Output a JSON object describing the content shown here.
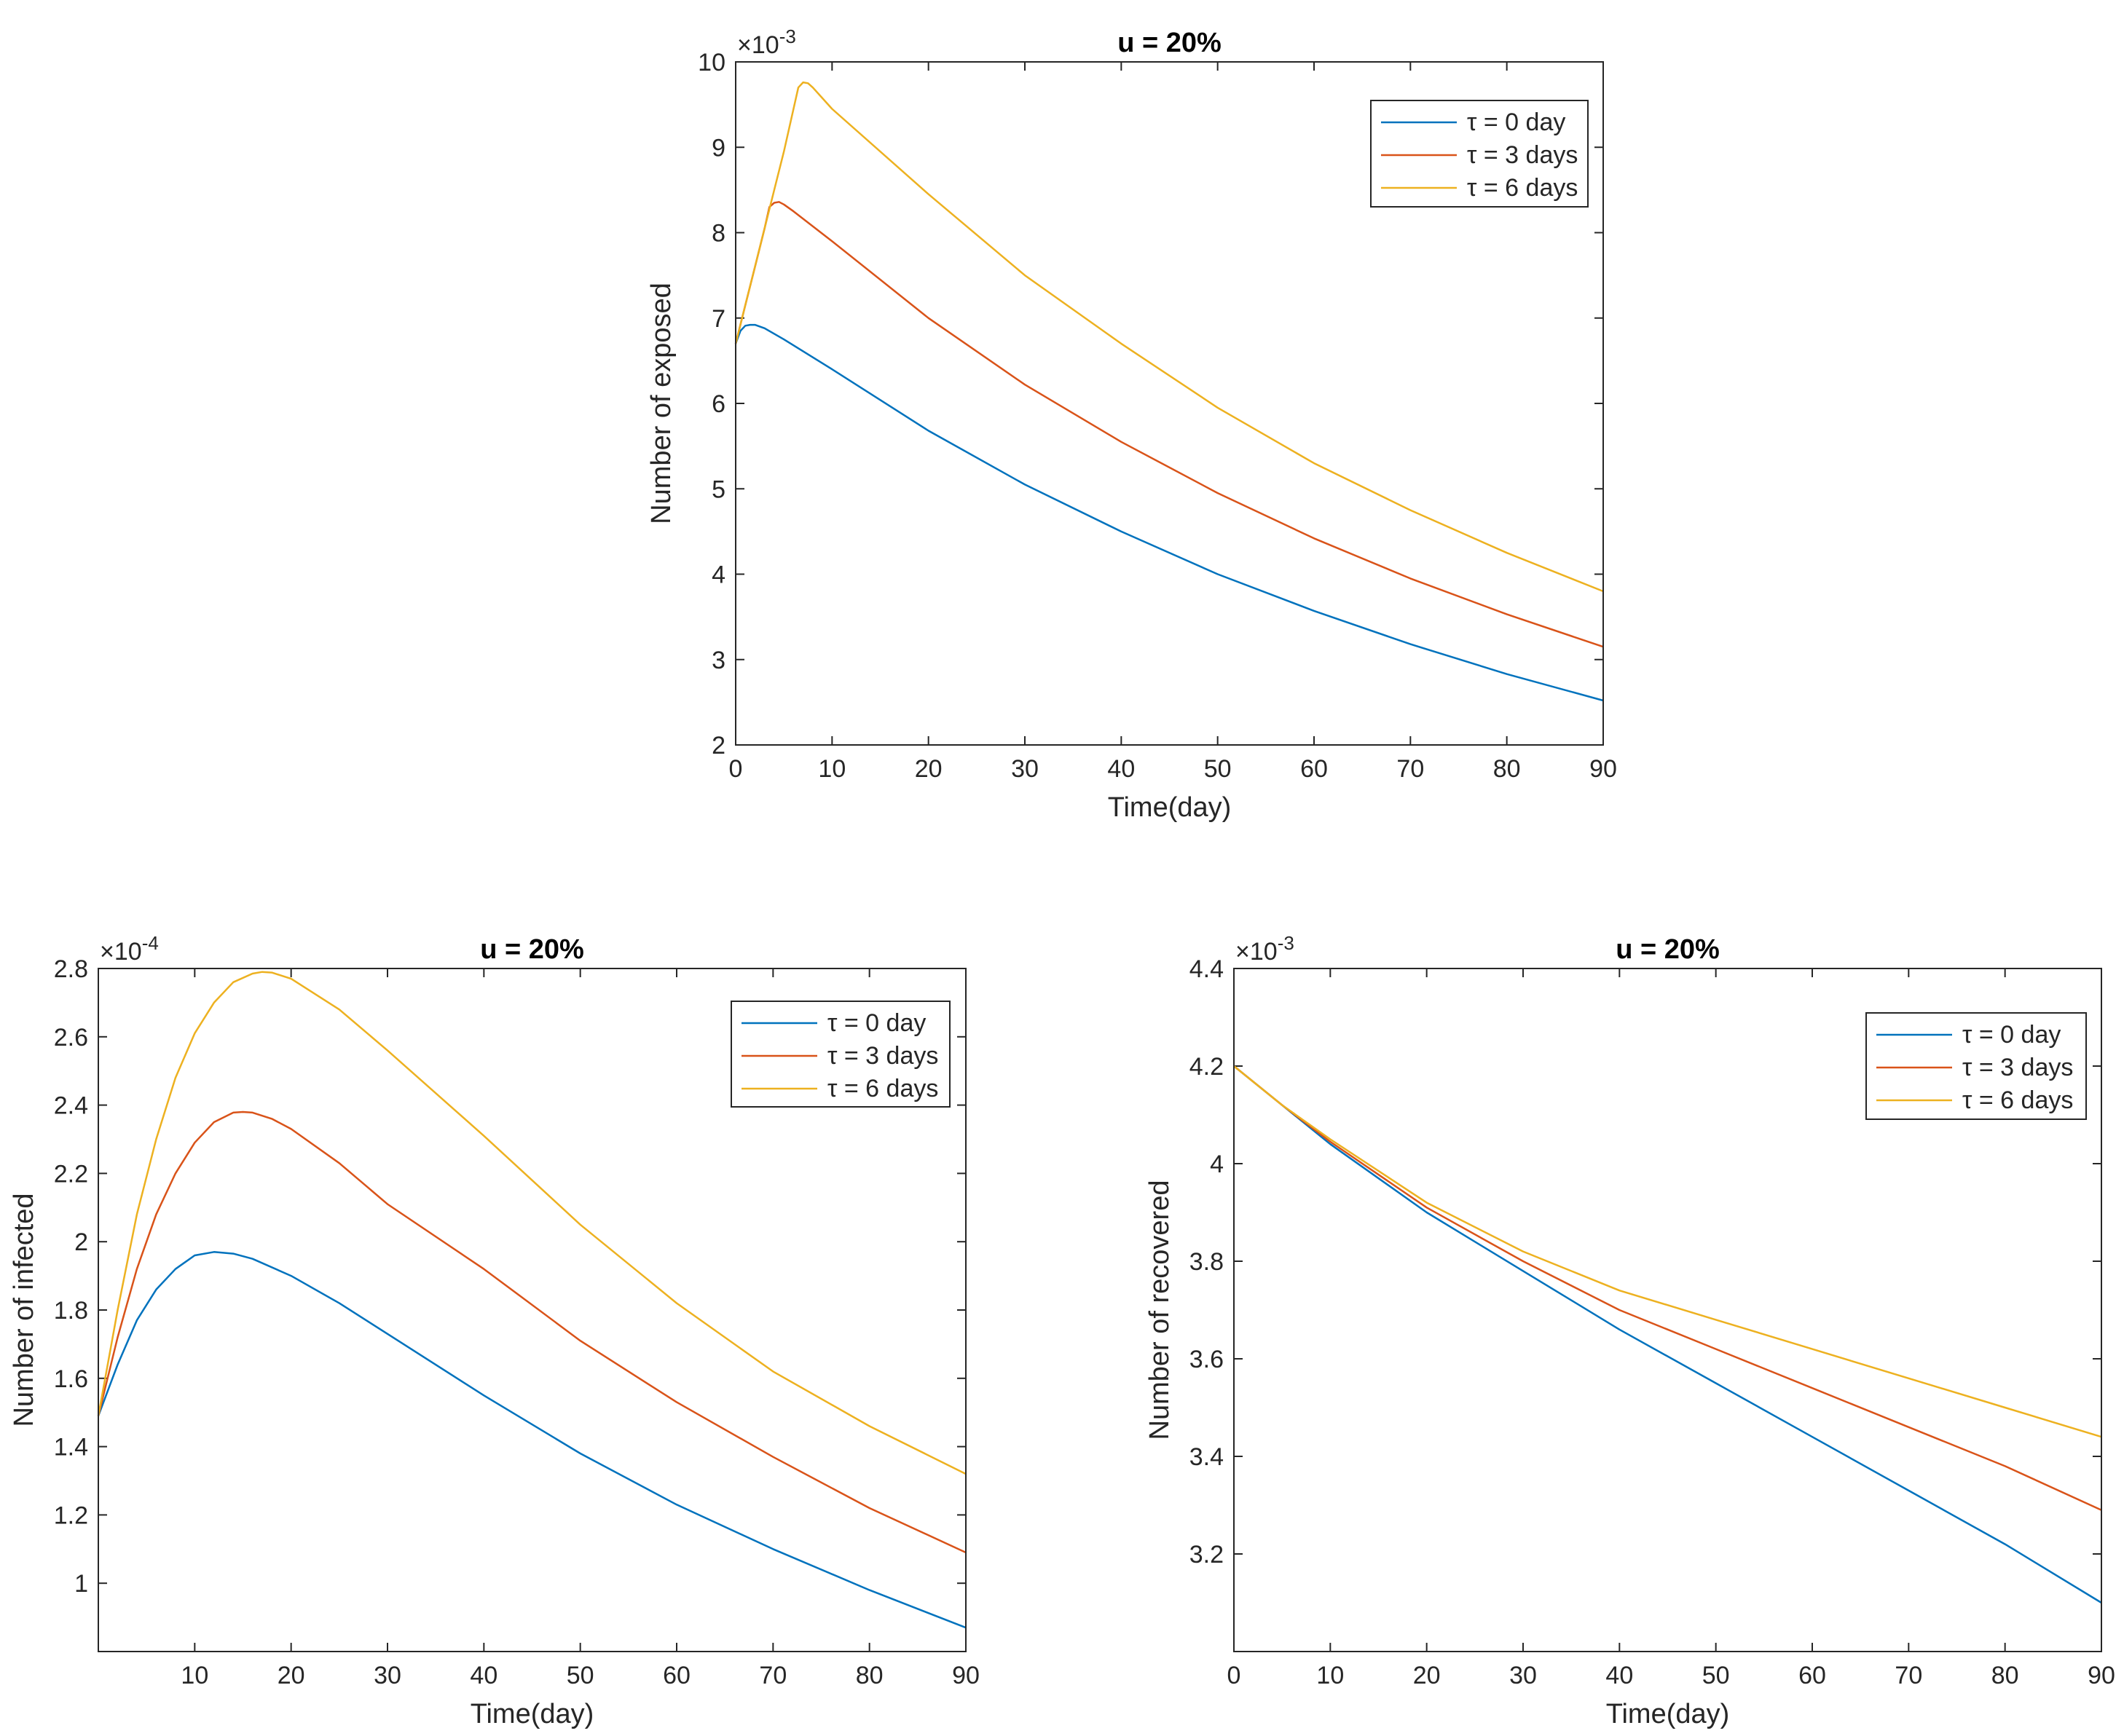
{
  "figure": {
    "colors": {
      "axis": "#262626",
      "tau0": "#0072BD",
      "tau3": "#D95319",
      "tau6": "#EDB120"
    }
  },
  "chart_data": [
    {
      "id": "exposed",
      "type": "line",
      "title": "u = 20%",
      "xlabel": "Time(day)",
      "ylabel": "Number of exposed",
      "exponent_label": "×10",
      "exponent_power": "-3",
      "xlim": [
        0,
        90
      ],
      "ylim": [
        2,
        10
      ],
      "xticks": [
        0,
        10,
        20,
        30,
        40,
        50,
        60,
        70,
        80,
        90
      ],
      "yticks": [
        2,
        3,
        4,
        5,
        6,
        7,
        8,
        9,
        10
      ],
      "legend_position": "top-right",
      "series": [
        {
          "name": "τ = 0 day",
          "color": "#0072BD",
          "x": [
            0,
            0.5,
            1,
            1.5,
            2,
            3,
            5,
            10,
            20,
            30,
            40,
            50,
            60,
            70,
            80,
            90
          ],
          "y": [
            6.7,
            6.85,
            6.91,
            6.92,
            6.92,
            6.88,
            6.75,
            6.4,
            5.68,
            5.05,
            4.5,
            4.0,
            3.57,
            3.18,
            2.83,
            2.52
          ]
        },
        {
          "name": "τ = 3 days",
          "color": "#D95319",
          "x": [
            0,
            1,
            2,
            3,
            3.5,
            4,
            4.5,
            5,
            6,
            10,
            20,
            30,
            40,
            50,
            60,
            70,
            80,
            90
          ],
          "y": [
            6.7,
            7.15,
            7.6,
            8.05,
            8.3,
            8.35,
            8.36,
            8.33,
            8.25,
            7.9,
            7.0,
            6.22,
            5.55,
            4.95,
            4.42,
            3.95,
            3.53,
            3.15
          ]
        },
        {
          "name": "τ = 6 days",
          "color": "#EDB120",
          "x": [
            0,
            1,
            2,
            3,
            4,
            5,
            6,
            6.5,
            7,
            7.5,
            8,
            10,
            20,
            30,
            40,
            50,
            60,
            70,
            80,
            90
          ],
          "y": [
            6.7,
            7.15,
            7.6,
            8.05,
            8.5,
            8.95,
            9.45,
            9.7,
            9.76,
            9.75,
            9.7,
            9.45,
            8.45,
            7.5,
            6.7,
            5.95,
            5.3,
            4.75,
            4.25,
            3.8
          ]
        }
      ]
    },
    {
      "id": "infected",
      "type": "line",
      "title": "u = 20%",
      "xlabel": "Time(day)",
      "ylabel": "Number of infected",
      "exponent_label": "×10",
      "exponent_power": "-4",
      "xlim": [
        0,
        90
      ],
      "ylim": [
        0.8,
        2.8
      ],
      "xticks": [
        10,
        20,
        30,
        40,
        50,
        60,
        70,
        80,
        90
      ],
      "yticks": [
        1,
        1.2,
        1.4,
        1.6,
        1.8,
        2,
        2.2,
        2.4,
        2.6,
        2.8
      ],
      "legend_position": "top-right",
      "series": [
        {
          "name": "τ = 0 day",
          "color": "#0072BD",
          "x": [
            0,
            2,
            4,
            6,
            8,
            10,
            12,
            14,
            16,
            20,
            25,
            30,
            40,
            50,
            60,
            70,
            80,
            90
          ],
          "y": [
            1.49,
            1.64,
            1.77,
            1.86,
            1.92,
            1.96,
            1.97,
            1.965,
            1.95,
            1.9,
            1.82,
            1.73,
            1.55,
            1.38,
            1.23,
            1.1,
            0.98,
            0.87
          ]
        },
        {
          "name": "τ = 3 days",
          "color": "#D95319",
          "x": [
            0,
            2,
            4,
            6,
            8,
            10,
            12,
            14,
            15,
            16,
            18,
            20,
            25,
            30,
            40,
            50,
            60,
            70,
            80,
            90
          ],
          "y": [
            1.49,
            1.72,
            1.92,
            2.08,
            2.2,
            2.29,
            2.35,
            2.378,
            2.38,
            2.378,
            2.36,
            2.33,
            2.23,
            2.11,
            1.92,
            1.71,
            1.53,
            1.37,
            1.22,
            1.09
          ]
        },
        {
          "name": "τ = 6 days",
          "color": "#EDB120",
          "x": [
            0,
            2,
            4,
            6,
            8,
            10,
            12,
            14,
            16,
            17,
            18,
            20,
            25,
            30,
            40,
            50,
            60,
            70,
            80,
            90
          ],
          "y": [
            1.49,
            1.8,
            2.08,
            2.3,
            2.48,
            2.61,
            2.7,
            2.76,
            2.785,
            2.79,
            2.788,
            2.77,
            2.68,
            2.56,
            2.31,
            2.05,
            1.82,
            1.62,
            1.46,
            1.32
          ]
        }
      ]
    },
    {
      "id": "recovered",
      "type": "line",
      "title": "u = 20%",
      "xlabel": "Time(day)",
      "ylabel": "Number of recovered",
      "exponent_label": "×10",
      "exponent_power": "-3",
      "xlim": [
        0,
        90
      ],
      "ylim": [
        3.0,
        4.4
      ],
      "xticks": [
        0,
        10,
        20,
        30,
        40,
        50,
        60,
        70,
        80,
        90
      ],
      "yticks": [
        3.2,
        3.4,
        3.6,
        3.8,
        4,
        4.2,
        4.4
      ],
      "legend_position": "top-right",
      "series": [
        {
          "name": "τ = 0 day",
          "color": "#0072BD",
          "x": [
            0,
            5,
            10,
            20,
            30,
            40,
            50,
            60,
            70,
            80,
            90
          ],
          "y": [
            4.2,
            4.12,
            4.04,
            3.9,
            3.78,
            3.66,
            3.55,
            3.44,
            3.33,
            3.22,
            3.1
          ]
        },
        {
          "name": "τ = 3 days",
          "color": "#D95319",
          "x": [
            0,
            5,
            10,
            20,
            30,
            40,
            50,
            60,
            70,
            80,
            90
          ],
          "y": [
            4.2,
            4.12,
            4.045,
            3.91,
            3.8,
            3.7,
            3.62,
            3.54,
            3.46,
            3.38,
            3.29
          ]
        },
        {
          "name": "τ = 6 days",
          "color": "#EDB120",
          "x": [
            0,
            5,
            10,
            20,
            30,
            40,
            50,
            60,
            70,
            80,
            90
          ],
          "y": [
            4.2,
            4.12,
            4.05,
            3.92,
            3.82,
            3.74,
            3.68,
            3.62,
            3.56,
            3.5,
            3.44
          ]
        }
      ]
    }
  ]
}
